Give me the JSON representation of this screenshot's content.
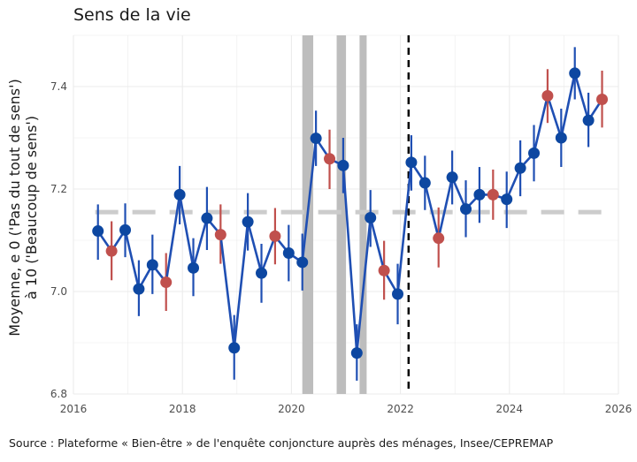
{
  "chart_data": {
    "type": "line",
    "title": "Sens de la vie",
    "ylabel_line1": "Moyenne, e 0 ('Pas du tout de sens')",
    "ylabel_line2": "à 10 ('Beaucoup de sens')",
    "xlabel": "",
    "xlim": [
      2016,
      2026
    ],
    "ylim": [
      6.8,
      7.5
    ],
    "x_ticks": [
      2016,
      2018,
      2020,
      2022,
      2024,
      2026
    ],
    "y_ticks": [
      6.8,
      7.0,
      7.2,
      7.4
    ],
    "y_tick_labels": [
      "6.8",
      "7.0",
      "7.2",
      "7.4"
    ],
    "reference_line": 7.155,
    "vertical_marker": 2022.15,
    "shaded_periods": [
      [
        2020.2,
        2020.4
      ],
      [
        2020.83,
        2021.0
      ],
      [
        2021.25,
        2021.38
      ]
    ],
    "colors": {
      "line": "#1f4fb3",
      "point": "#0d47a1",
      "highlight": "#c0504d",
      "shade": "#bdbdbd",
      "ref": "#cccccc",
      "grid": "#ebebeb"
    },
    "points": [
      {
        "x": 2016.45,
        "y": 7.118,
        "lo": 7.062,
        "hi": 7.17,
        "highlight": false
      },
      {
        "x": 2016.7,
        "y": 7.079,
        "lo": 7.022,
        "hi": 7.137,
        "highlight": true
      },
      {
        "x": 2016.95,
        "y": 7.12,
        "lo": 7.067,
        "hi": 7.172,
        "highlight": false
      },
      {
        "x": 2017.2,
        "y": 7.005,
        "lo": 6.952,
        "hi": 7.061,
        "highlight": false
      },
      {
        "x": 2017.45,
        "y": 7.052,
        "lo": 6.995,
        "hi": 7.111,
        "highlight": false
      },
      {
        "x": 2017.7,
        "y": 7.018,
        "lo": 6.962,
        "hi": 7.075,
        "highlight": true
      },
      {
        "x": 2017.95,
        "y": 7.189,
        "lo": 7.131,
        "hi": 7.245,
        "highlight": false
      },
      {
        "x": 2018.2,
        "y": 7.046,
        "lo": 6.991,
        "hi": 7.104,
        "highlight": false
      },
      {
        "x": 2018.45,
        "y": 7.143,
        "lo": 7.081,
        "hi": 7.204,
        "highlight": false
      },
      {
        "x": 2018.7,
        "y": 7.111,
        "lo": 7.054,
        "hi": 7.17,
        "highlight": true
      },
      {
        "x": 2018.95,
        "y": 6.89,
        "lo": 6.828,
        "hi": 6.954,
        "highlight": false
      },
      {
        "x": 2019.2,
        "y": 7.136,
        "lo": 7.08,
        "hi": 7.192,
        "highlight": false
      },
      {
        "x": 2019.45,
        "y": 7.036,
        "lo": 6.978,
        "hi": 7.093,
        "highlight": false
      },
      {
        "x": 2019.7,
        "y": 7.108,
        "lo": 7.053,
        "hi": 7.163,
        "highlight": true
      },
      {
        "x": 2019.95,
        "y": 7.075,
        "lo": 7.02,
        "hi": 7.13,
        "highlight": false
      },
      {
        "x": 2020.2,
        "y": 7.057,
        "lo": 7.002,
        "hi": 7.113,
        "highlight": false
      },
      {
        "x": 2020.45,
        "y": 7.299,
        "lo": 7.245,
        "hi": 7.353,
        "highlight": false
      },
      {
        "x": 2020.7,
        "y": 7.259,
        "lo": 7.2,
        "hi": 7.316,
        "highlight": true
      },
      {
        "x": 2020.95,
        "y": 7.246,
        "lo": 7.192,
        "hi": 7.3,
        "highlight": false
      },
      {
        "x": 2021.2,
        "y": 6.88,
        "lo": 6.826,
        "hi": 6.936,
        "highlight": false
      },
      {
        "x": 2021.45,
        "y": 7.144,
        "lo": 7.087,
        "hi": 7.198,
        "highlight": false
      },
      {
        "x": 2021.7,
        "y": 7.041,
        "lo": 6.984,
        "hi": 7.099,
        "highlight": true
      },
      {
        "x": 2021.95,
        "y": 6.995,
        "lo": 6.936,
        "hi": 7.054,
        "highlight": false
      },
      {
        "x": 2022.2,
        "y": 7.252,
        "lo": 7.197,
        "hi": 7.305,
        "highlight": false
      },
      {
        "x": 2022.45,
        "y": 7.212,
        "lo": 7.159,
        "hi": 7.265,
        "highlight": false
      },
      {
        "x": 2022.7,
        "y": 7.104,
        "lo": 7.047,
        "hi": 7.164,
        "highlight": true
      },
      {
        "x": 2022.95,
        "y": 7.223,
        "lo": 7.17,
        "hi": 7.275,
        "highlight": false
      },
      {
        "x": 2023.2,
        "y": 7.161,
        "lo": 7.106,
        "hi": 7.217,
        "highlight": false
      },
      {
        "x": 2023.45,
        "y": 7.189,
        "lo": 7.134,
        "hi": 7.243,
        "highlight": false
      },
      {
        "x": 2023.7,
        "y": 7.189,
        "lo": 7.14,
        "hi": 7.238,
        "highlight": true
      },
      {
        "x": 2023.95,
        "y": 7.18,
        "lo": 7.124,
        "hi": 7.234,
        "highlight": false
      },
      {
        "x": 2024.2,
        "y": 7.241,
        "lo": 7.186,
        "hi": 7.295,
        "highlight": false
      },
      {
        "x": 2024.45,
        "y": 7.27,
        "lo": 7.215,
        "hi": 7.325,
        "highlight": false
      },
      {
        "x": 2024.7,
        "y": 7.382,
        "lo": 7.329,
        "hi": 7.434,
        "highlight": true
      },
      {
        "x": 2024.95,
        "y": 7.3,
        "lo": 7.243,
        "hi": 7.357,
        "highlight": false
      },
      {
        "x": 2025.2,
        "y": 7.426,
        "lo": 7.375,
        "hi": 7.477,
        "highlight": false
      },
      {
        "x": 2025.45,
        "y": 7.334,
        "lo": 7.282,
        "hi": 7.388,
        "highlight": false
      },
      {
        "x": 2025.7,
        "y": 7.375,
        "lo": 7.32,
        "hi": 7.431,
        "highlight": true
      }
    ]
  },
  "source": "Source : Plateforme « Bien-être » de l'enquête conjoncture auprès des ménages, Insee/CEPREMAP"
}
